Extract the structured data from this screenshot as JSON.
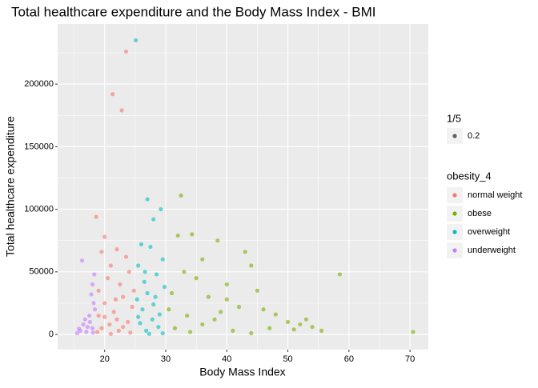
{
  "chart_data": {
    "type": "scatter",
    "title": "Total healthcare expenditure and the Body Mass Index - BMI",
    "x_label": "Body Mass Index",
    "y_label": "Total healthcare expenditure",
    "xlim": [
      12.3,
      73.0
    ],
    "ylim": [
      -12100,
      248000
    ],
    "xticks": [
      20,
      30,
      40,
      50,
      60,
      70
    ],
    "yticks": [
      0,
      50000,
      100000,
      150000,
      200000
    ],
    "x_minor_ticks": [
      15,
      25,
      35,
      45,
      55,
      65
    ],
    "y_minor_ticks": [
      25000,
      75000,
      125000,
      175000,
      225000
    ],
    "grid": true,
    "alpha": 0.6,
    "alpha_legend": {
      "title": "1/5",
      "labels": [
        "0.2"
      ]
    },
    "legend_title": "obesity_4",
    "series": [
      {
        "name": "normal weight",
        "color": "#F8766D",
        "x": [
          18.6,
          21.3,
          23.5,
          22.8,
          20,
          22,
          19.5,
          23.5,
          21,
          24,
          20.5,
          22.5,
          19,
          23,
          20,
          24.5,
          21.5,
          19,
          22,
          23.8,
          20.8,
          19.5,
          22.3,
          24.2,
          21,
          23,
          20,
          24.8,
          18.8,
          21.8
        ],
        "values": [
          94000,
          192000,
          226000,
          179000,
          78000,
          68000,
          66000,
          62000,
          55000,
          50000,
          45000,
          40000,
          35000,
          30000,
          25000,
          22000,
          18000,
          15000,
          12000,
          10000,
          8000,
          5000,
          3000,
          1500,
          500,
          6000,
          14000,
          35000,
          2000,
          28000
        ]
      },
      {
        "name": "obese",
        "color": "#7CAE00",
        "x": [
          32.5,
          34.3,
          32,
          38.5,
          36,
          43,
          44,
          33,
          35,
          40,
          45,
          31,
          37,
          40,
          42,
          46,
          48,
          33.5,
          38,
          50,
          52,
          55.5,
          58.5,
          70.5,
          53,
          47,
          36,
          31.5,
          34,
          41,
          44,
          30.5,
          39,
          51,
          54
        ],
        "values": [
          111000,
          80000,
          79000,
          75000,
          60000,
          66000,
          55000,
          50000,
          45000,
          40000,
          35000,
          33000,
          30000,
          28000,
          22000,
          20000,
          16000,
          15000,
          12000,
          10000,
          8000,
          3000,
          48000,
          2000,
          12000,
          5000,
          8000,
          5000,
          2000,
          3000,
          1000,
          20000,
          18000,
          4000,
          6000
        ]
      },
      {
        "name": "overweight",
        "color": "#00BFC4",
        "x": [
          25.1,
          27,
          29.2,
          28,
          26,
          27.5,
          29.5,
          25.5,
          28.5,
          26.5,
          29.8,
          27,
          25.3,
          28,
          26.2,
          29,
          27.8,
          25.8,
          28.8,
          26.8,
          29.5,
          27.3,
          25.5,
          28.3,
          26.6
        ],
        "values": [
          235000,
          108000,
          100000,
          92000,
          72000,
          70000,
          60000,
          55000,
          48000,
          42000,
          38000,
          33000,
          28000,
          24000,
          20000,
          16000,
          12000,
          9000,
          6000,
          3000,
          1000,
          500,
          14000,
          30000,
          50000
        ]
      },
      {
        "name": "underweight",
        "color": "#C77CFF",
        "x": [
          15.5,
          16,
          16.5,
          17,
          17.5,
          18,
          18.2,
          16.3,
          18.3,
          17.8,
          18.4,
          16.8,
          17.2,
          18,
          15.8,
          17.6,
          18.1
        ],
        "values": [
          1000,
          3000,
          8000,
          2000,
          15000,
          5000,
          25000,
          59000,
          48000,
          32000,
          20000,
          12000,
          6000,
          40000,
          4500,
          10000,
          1500
        ]
      }
    ]
  }
}
